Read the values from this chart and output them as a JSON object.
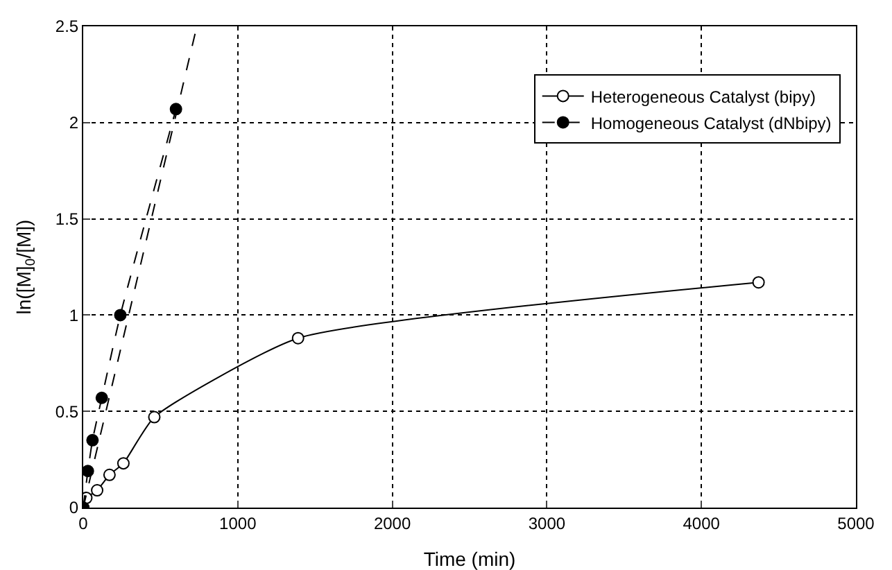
{
  "chart_data": {
    "type": "line",
    "xlabel": "Time (min)",
    "ylabel": "ln([M]$_{0}$/[M])",
    "xlim": [
      0,
      5000
    ],
    "xticks": [
      0,
      1000,
      2000,
      3000,
      4000,
      5000
    ],
    "ylim": [
      0,
      2.5
    ],
    "yticks": [
      0,
      0.5,
      1,
      1.5,
      2,
      2.5
    ],
    "grid": true,
    "legend": "top right",
    "series": [
      {
        "name": "Heterogeneous Catalyst (bipy)",
        "color": "#000000",
        "marker": "circle",
        "colors": [
          "#ffffff",
          "#ffffff",
          "#ffffff",
          "#ffffff",
          "#ffffff",
          "#ffffff",
          "#ffffff",
          "#ffffff"
        ],
        "line_style": "solid",
        "x": [
          0,
          20,
          90,
          170,
          260,
          460,
          1390,
          4370
        ],
        "values": [
          0,
          0.05,
          0.09,
          0.17,
          0.23,
          0.47,
          0.88,
          1.17
        ]
      },
      {
        "name": "Homogeneous Catalyst (dNbipy)",
        "color": "#000000",
        "marker": "circle",
        "line_style": "dashed",
        "x": [
          0,
          30,
          60,
          120,
          240,
          600
        ],
        "values": [
          0,
          0.19,
          0.35,
          0.57,
          1.0,
          2.07
        ]
      },
      {
        "color": "#000000",
        "marker": "none",
        "line_style": "dashed",
        "x": [
          0,
          735
        ],
        "values": [
          0,
          2.5
        ]
      }
    ]
  }
}
